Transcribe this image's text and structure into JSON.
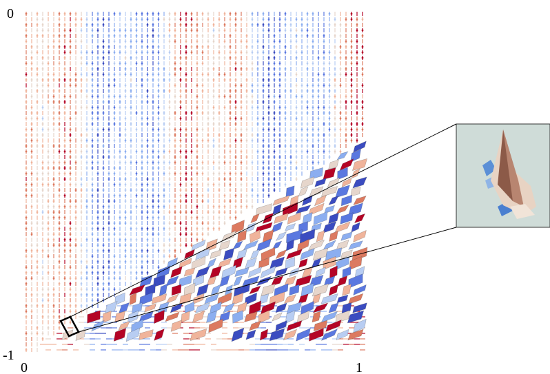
{
  "axes": {
    "y_top": "0",
    "y_bottom": "-1",
    "x_left": "0",
    "x_right": "1"
  }
}
